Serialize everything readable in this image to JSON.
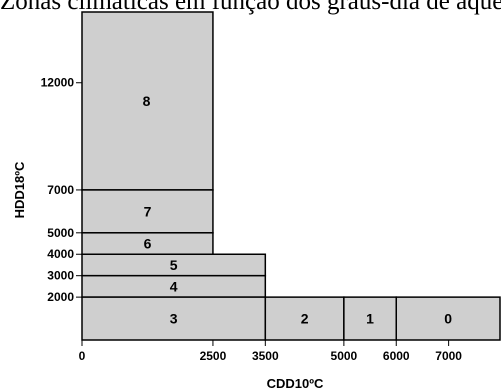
{
  "title": "Zonas climáticas em função dos graus-dia de aquecimento (HDD) e de arrefecimento (CDD)",
  "chart_data": {
    "type": "diagram",
    "title": "Zonas climáticas em função dos graus-dia de aquecimento (HDD) e de arrefecimento (CDD)",
    "xlabel": "CDD10ºC",
    "ylabel": "HDD18ºC",
    "xlim": [
      0,
      8000
    ],
    "ylim": [
      0,
      15300
    ],
    "x_ticks": [
      {
        "value": 0,
        "label": "0"
      },
      {
        "value": 2500,
        "label": "2500"
      },
      {
        "value": 3500,
        "label": "3500"
      },
      {
        "value": 5000,
        "label": "5000"
      },
      {
        "value": 6000,
        "label": "6000"
      },
      {
        "value": 7000,
        "label": "7000"
      }
    ],
    "y_ticks": [
      {
        "value": 2000,
        "label": "2000"
      },
      {
        "value": 3000,
        "label": "3000"
      },
      {
        "value": 4000,
        "label": "4000"
      },
      {
        "value": 5000,
        "label": "5000"
      },
      {
        "value": 7000,
        "label": "7000"
      },
      {
        "value": 12000,
        "label": "12000"
      }
    ],
    "zones": [
      {
        "label": "8",
        "x0": 0,
        "x1": 2500,
        "y0": 7000,
        "y1": 15300
      },
      {
        "label": "7",
        "x0": 0,
        "x1": 2500,
        "y0": 5000,
        "y1": 7000
      },
      {
        "label": "6",
        "x0": 0,
        "x1": 2500,
        "y0": 4000,
        "y1": 5000
      },
      {
        "label": "5",
        "x0": 0,
        "x1": 3500,
        "y0": 3000,
        "y1": 4000
      },
      {
        "label": "4",
        "x0": 0,
        "x1": 3500,
        "y0": 2000,
        "y1": 3000
      },
      {
        "label": "3",
        "x0": 0,
        "x1": 3500,
        "y0": 0,
        "y1": 2000
      },
      {
        "label": "2",
        "x0": 3500,
        "x1": 5000,
        "y0": 0,
        "y1": 2000
      },
      {
        "label": "1",
        "x0": 5000,
        "x1": 6000,
        "y0": 0,
        "y1": 2000
      },
      {
        "label": "0",
        "x0": 6000,
        "x1": 8000,
        "y0": 0,
        "y1": 2000
      }
    ],
    "colors": {
      "fill": "#cfcfcf",
      "stroke": "#000000"
    }
  }
}
